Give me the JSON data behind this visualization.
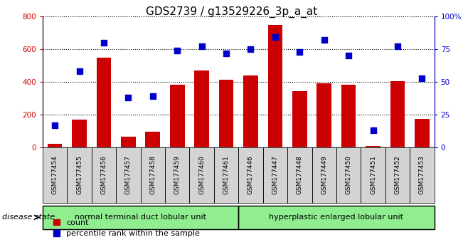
{
  "title": "GDS2739 / g13529226_3p_a_at",
  "categories": [
    "GSM177454",
    "GSM177455",
    "GSM177456",
    "GSM177457",
    "GSM177458",
    "GSM177459",
    "GSM177460",
    "GSM177461",
    "GSM177446",
    "GSM177447",
    "GSM177448",
    "GSM177449",
    "GSM177450",
    "GSM177451",
    "GSM177452",
    "GSM177453"
  ],
  "counts": [
    20,
    170,
    550,
    65,
    95,
    385,
    470,
    415,
    440,
    750,
    345,
    390,
    385,
    10,
    405,
    175
  ],
  "percentiles": [
    17,
    58,
    80,
    38,
    39,
    74,
    77,
    72,
    75,
    84,
    73,
    82,
    70,
    13,
    77,
    53
  ],
  "group1_label": "normal terminal duct lobular unit",
  "group2_label": "hyperplastic enlarged lobular unit",
  "n_group1": 8,
  "n_group2": 8,
  "bar_color": "#cc0000",
  "dot_color": "#0000cc",
  "ylim_left": [
    0,
    800
  ],
  "ylim_right": [
    0,
    100
  ],
  "yticks_left": [
    0,
    200,
    400,
    600,
    800
  ],
  "yticks_right": [
    0,
    25,
    50,
    75,
    100
  ],
  "yticklabels_right": [
    "0",
    "25",
    "50",
    "75",
    "100%"
  ],
  "group_color": "#90ee90",
  "xtick_bg_color": "#d3d3d3",
  "disease_state_label": "disease state",
  "dot_size": 40,
  "title_fontsize": 11,
  "tick_fontsize": 7.5,
  "label_fontsize": 8
}
